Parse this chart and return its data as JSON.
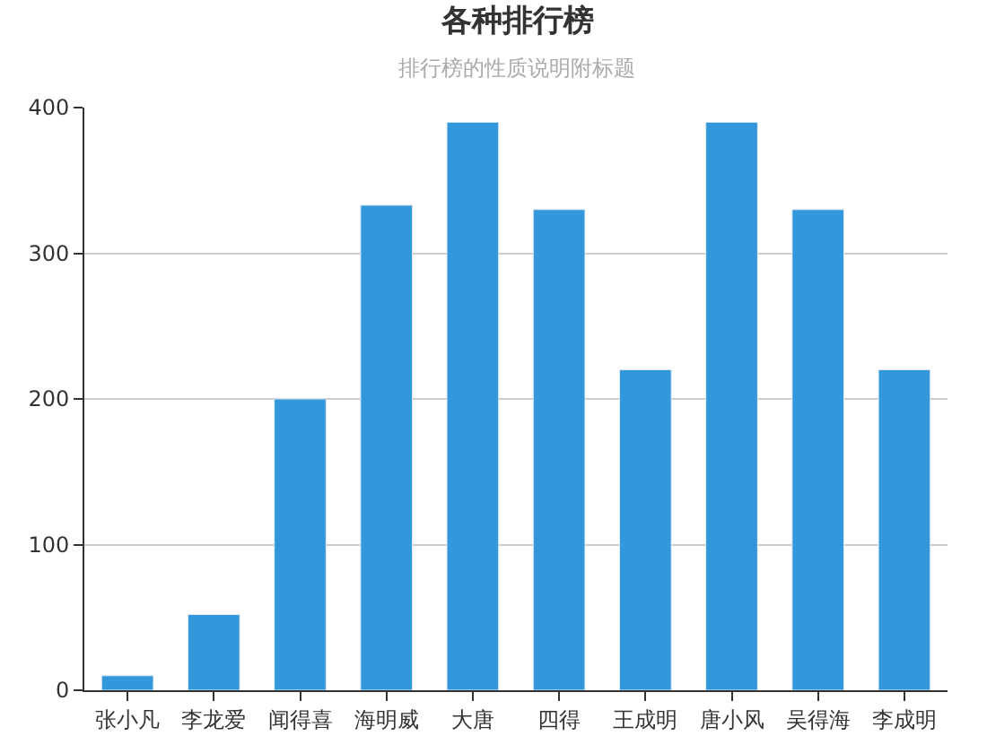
{
  "chart_data": {
    "type": "bar",
    "title": "各种排行榜",
    "subtitle": "排行榜的性质说明附标题",
    "categories": [
      "张小凡",
      "李龙爱",
      "闻得喜",
      "海明威",
      "大唐",
      "四得",
      "王成明",
      "唐小风",
      "吴得海",
      "李成明"
    ],
    "values": [
      10,
      52,
      200,
      333,
      390,
      330,
      220,
      390,
      330,
      220
    ],
    "color": "#3398db",
    "ylim": [
      0,
      400
    ],
    "yticks": [
      0,
      100,
      200,
      300,
      400
    ],
    "grid": "y",
    "legend": false
  }
}
